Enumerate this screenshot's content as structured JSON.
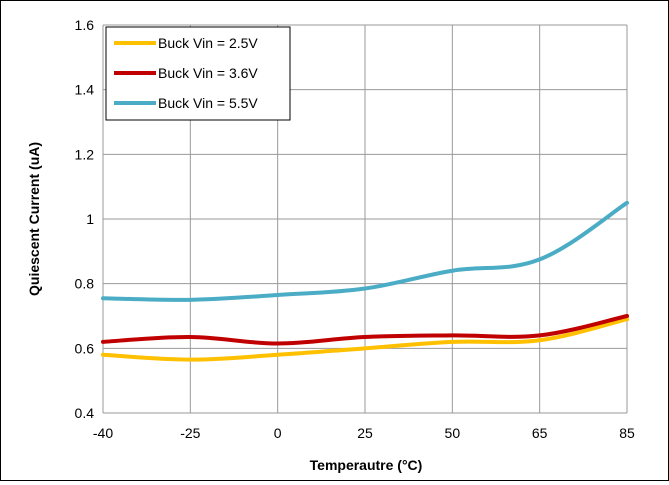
{
  "chart_data": {
    "type": "line",
    "title": "",
    "xlabel": "Temperautre (°C)",
    "ylabel": "Quiescent Current (uA)",
    "xlim": [
      -40,
      85
    ],
    "ylim": [
      0.4,
      1.6
    ],
    "x_ticks": [
      -40,
      -25,
      0,
      25,
      50,
      65,
      85
    ],
    "x_tick_labels": [
      "-40",
      "-25",
      "0",
      "25",
      "50",
      "65",
      "85"
    ],
    "y_ticks": [
      0.4,
      0.6,
      0.8,
      1.0,
      1.2,
      1.4,
      1.6
    ],
    "y_tick_labels": [
      "0.4",
      "0.6",
      "0.8",
      "1",
      "1.2",
      "1.4",
      "1.6"
    ],
    "grid": true,
    "legend_position": "top-left",
    "x_categories": [
      -40,
      -25,
      0,
      25,
      50,
      65,
      85
    ],
    "series": [
      {
        "name": "Buck Vin = 2.5V",
        "color": "#FFC000",
        "values": [
          0.58,
          0.565,
          0.58,
          0.6,
          0.62,
          0.625,
          0.69
        ]
      },
      {
        "name": "Buck Vin = 3.6V",
        "color": "#C00000",
        "values": [
          0.62,
          0.635,
          0.615,
          0.635,
          0.64,
          0.64,
          0.7
        ]
      },
      {
        "name": "Buck Vin = 5.5V",
        "color": "#4BACC6",
        "values": [
          0.755,
          0.75,
          0.765,
          0.785,
          0.84,
          0.875,
          1.05
        ]
      }
    ]
  }
}
